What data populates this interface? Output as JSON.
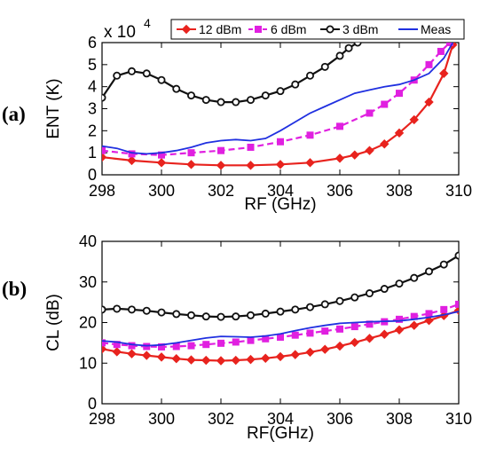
{
  "chart_data": [
    {
      "panel_label": "(a)",
      "type": "line",
      "xlabel": "RF (GHz)",
      "ylabel": "ENT (K)",
      "y_multiplier": "x 10",
      "y_exponent": "4",
      "xlim": [
        298,
        310
      ],
      "ylim": [
        0,
        6
      ],
      "x_ticks": [
        "298",
        "300",
        "302",
        "304",
        "306",
        "308",
        "310"
      ],
      "y_ticks": [
        "0",
        "1",
        "2",
        "3",
        "4",
        "5",
        "6"
      ],
      "grid": false,
      "legend": {
        "placement": "top",
        "entries": [
          "12 dBm",
          "6 dBm",
          "3 dBm",
          "Meas"
        ]
      },
      "series": [
        {
          "name": "12 dBm",
          "color": "#e8231e",
          "marker": "diamond",
          "x": [
            298,
            299,
            300,
            301,
            302,
            303,
            304,
            305,
            306,
            306.5,
            307,
            307.5,
            308,
            308.5,
            309,
            309.5,
            309.8
          ],
          "y": [
            0.8,
            0.65,
            0.55,
            0.47,
            0.43,
            0.43,
            0.47,
            0.55,
            0.75,
            0.9,
            1.1,
            1.4,
            1.9,
            2.5,
            3.3,
            4.6,
            5.9
          ]
        },
        {
          "name": "6 dBm",
          "color": "#e020e0",
          "marker": "square",
          "x": [
            298,
            299,
            300,
            301,
            302,
            303,
            304,
            305,
            306,
            307,
            307.5,
            308,
            308.5,
            309,
            309.4,
            309.7
          ],
          "y": [
            1.1,
            0.95,
            0.9,
            1.0,
            1.1,
            1.25,
            1.5,
            1.8,
            2.2,
            2.8,
            3.2,
            3.7,
            4.3,
            5.0,
            5.6,
            6.0
          ]
        },
        {
          "name": "3 dBm",
          "color": "#111111",
          "marker": "circle",
          "x": [
            298,
            298.5,
            299,
            299.5,
            300,
            300.5,
            301,
            301.5,
            302,
            302.5,
            303,
            303.5,
            304,
            304.5,
            305,
            305.5,
            306,
            306.3,
            306.6
          ],
          "y": [
            3.5,
            4.5,
            4.7,
            4.6,
            4.3,
            3.9,
            3.6,
            3.4,
            3.3,
            3.3,
            3.4,
            3.6,
            3.8,
            4.1,
            4.5,
            4.9,
            5.4,
            5.75,
            6.0
          ]
        },
        {
          "name": "Meas",
          "color": "#2030e0",
          "marker": "none",
          "x": [
            298,
            298.5,
            299,
            299.5,
            300,
            300.5,
            301,
            301.5,
            302,
            302.5,
            303,
            303.5,
            304,
            304.5,
            305,
            305.5,
            306,
            306.5,
            307,
            307.5,
            308,
            308.5,
            309,
            309.5,
            309.8
          ],
          "y": [
            1.3,
            1.2,
            1.0,
            0.95,
            1.0,
            1.1,
            1.25,
            1.45,
            1.55,
            1.6,
            1.55,
            1.65,
            2.0,
            2.4,
            2.8,
            3.1,
            3.4,
            3.7,
            3.85,
            4.0,
            4.1,
            4.3,
            4.6,
            5.3,
            6.0
          ]
        }
      ]
    },
    {
      "panel_label": "(b)",
      "type": "line",
      "xlabel": "RF(GHz)",
      "ylabel": "CL (dB)",
      "xlim": [
        298,
        310
      ],
      "ylim": [
        0,
        40
      ],
      "x_ticks": [
        "298",
        "300",
        "302",
        "304",
        "306",
        "308",
        "310"
      ],
      "y_ticks": [
        "0",
        "10",
        "20",
        "30",
        "40"
      ],
      "grid": false,
      "series": [
        {
          "name": "12 dBm",
          "color": "#e8231e",
          "marker": "diamond",
          "x": [
            298,
            298.5,
            299,
            299.5,
            300,
            300.5,
            301,
            301.5,
            302,
            302.5,
            303,
            303.5,
            304,
            304.5,
            305,
            305.5,
            306,
            306.5,
            307,
            307.5,
            308,
            308.5,
            309,
            309.5,
            310
          ],
          "y": [
            13.5,
            12.8,
            12.3,
            11.9,
            11.5,
            11.1,
            10.8,
            10.7,
            10.6,
            10.7,
            10.9,
            11.2,
            11.6,
            12.1,
            12.7,
            13.4,
            14.2,
            15.1,
            16.1,
            17.1,
            18.2,
            19.3,
            20.5,
            21.7,
            23.0
          ]
        },
        {
          "name": "6 dBm",
          "color": "#e020e0",
          "marker": "square",
          "x": [
            298,
            298.5,
            299,
            299.5,
            300,
            300.5,
            301,
            301.5,
            302,
            302.5,
            303,
            303.5,
            304,
            304.5,
            305,
            305.5,
            306,
            306.5,
            307,
            307.5,
            308,
            308.5,
            309,
            309.5,
            310
          ],
          "y": [
            15.0,
            14.6,
            14.3,
            14.1,
            14.0,
            14.1,
            14.3,
            14.6,
            14.9,
            15.2,
            15.6,
            16.0,
            16.4,
            16.9,
            17.4,
            17.9,
            18.4,
            19.0,
            19.6,
            20.2,
            20.8,
            21.5,
            22.2,
            23.2,
            24.5
          ]
        },
        {
          "name": "3 dBm",
          "color": "#111111",
          "marker": "circle",
          "x": [
            298,
            298.5,
            299,
            299.5,
            300,
            300.5,
            301,
            301.5,
            302,
            302.5,
            303,
            303.5,
            304,
            304.5,
            305,
            305.5,
            306,
            306.5,
            307,
            307.5,
            308,
            308.5,
            309,
            309.5,
            310
          ],
          "y": [
            23.2,
            23.4,
            23.2,
            22.9,
            22.5,
            22.1,
            21.8,
            21.5,
            21.4,
            21.5,
            21.8,
            22.2,
            22.7,
            23.2,
            23.8,
            24.5,
            25.3,
            26.2,
            27.2,
            28.3,
            29.6,
            31.0,
            32.6,
            34.3,
            36.5
          ]
        },
        {
          "name": "Meas",
          "color": "#2030e0",
          "marker": "none",
          "x": [
            298,
            298.5,
            299,
            299.5,
            300,
            300.5,
            301,
            301.5,
            302,
            302.5,
            303,
            303.5,
            304,
            304.5,
            305,
            305.5,
            306,
            306.5,
            307,
            307.5,
            308,
            308.5,
            309,
            309.5,
            310
          ],
          "y": [
            15.5,
            15.2,
            14.6,
            14.3,
            14.5,
            15.0,
            15.6,
            16.2,
            16.6,
            16.5,
            16.4,
            16.7,
            17.2,
            18.0,
            18.7,
            19.3,
            19.8,
            20.0,
            20.2,
            20.3,
            20.4,
            20.8,
            21.3,
            21.9,
            22.7
          ]
        }
      ]
    }
  ]
}
